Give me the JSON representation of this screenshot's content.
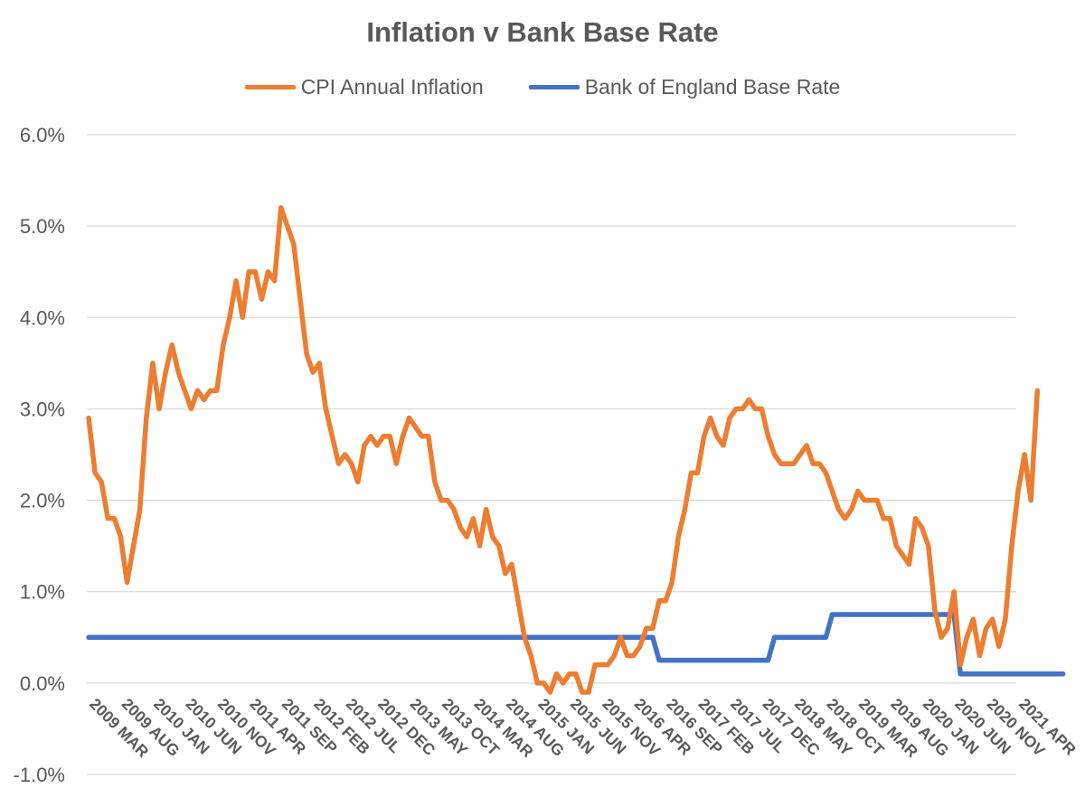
{
  "chart_data": {
    "type": "line",
    "title": "Inflation v Bank Base Rate",
    "xlabel": "",
    "ylabel": "",
    "ylim": [
      -1.0,
      6.0
    ],
    "y_ticks": [
      "-1.0%",
      "0.0%",
      "1.0%",
      "2.0%",
      "3.0%",
      "4.0%",
      "5.0%",
      "6.0%"
    ],
    "y_tick_values": [
      -1,
      0,
      1,
      2,
      3,
      4,
      5,
      6
    ],
    "grid": true,
    "legend_position": "top-center",
    "x_start": "2009 MAR",
    "x_tick_labels": [
      "2009 MAR",
      "2009 AUG",
      "2010 JAN",
      "2010 JUN",
      "2010 NOV",
      "2011 APR",
      "2011 SEP",
      "2012 FEB",
      "2012 JUL",
      "2012 DEC",
      "2013 MAY",
      "2013 OCT",
      "2014 MAR",
      "2014 AUG",
      "2015 JAN",
      "2015 JUN",
      "2015 NOV",
      "2016 APR",
      "2016 SEP",
      "2017 FEB",
      "2017 JUL",
      "2017 DEC",
      "2018 MAY",
      "2018 OCT",
      "2019 MAR",
      "2019 AUG",
      "2020 JAN",
      "2020 JUN",
      "2020 NOV",
      "2021 APR"
    ],
    "series": [
      {
        "name": "CPI Annual Inflation",
        "color": "#ED7D31",
        "values": [
          2.9,
          2.3,
          2.2,
          1.8,
          1.8,
          1.6,
          1.1,
          1.5,
          1.9,
          2.9,
          3.5,
          3.0,
          3.4,
          3.7,
          3.4,
          3.2,
          3.0,
          3.2,
          3.1,
          3.2,
          3.2,
          3.7,
          4.0,
          4.4,
          4.0,
          4.5,
          4.5,
          4.2,
          4.5,
          4.4,
          5.2,
          5.0,
          4.8,
          4.2,
          3.6,
          3.4,
          3.5,
          3.0,
          2.7,
          2.4,
          2.5,
          2.4,
          2.2,
          2.6,
          2.7,
          2.6,
          2.7,
          2.7,
          2.4,
          2.7,
          2.9,
          2.8,
          2.7,
          2.7,
          2.2,
          2.0,
          2.0,
          1.9,
          1.7,
          1.6,
          1.8,
          1.5,
          1.9,
          1.6,
          1.5,
          1.2,
          1.3,
          0.9,
          0.5,
          0.3,
          0.0,
          0.0,
          -0.1,
          0.1,
          0.0,
          0.1,
          0.1,
          -0.1,
          -0.1,
          0.2,
          0.2,
          0.2,
          0.3,
          0.5,
          0.3,
          0.3,
          0.4,
          0.6,
          0.6,
          0.9,
          0.9,
          1.1,
          1.6,
          1.9,
          2.3,
          2.3,
          2.7,
          2.9,
          2.7,
          2.6,
          2.9,
          3.0,
          3.0,
          3.1,
          3.0,
          3.0,
          2.7,
          2.5,
          2.4,
          2.4,
          2.4,
          2.5,
          2.6,
          2.4,
          2.4,
          2.3,
          2.1,
          1.9,
          1.8,
          1.9,
          2.1,
          2.0,
          2.0,
          2.0,
          1.8,
          1.8,
          1.5,
          1.4,
          1.3,
          1.8,
          1.7,
          1.5,
          0.8,
          0.5,
          0.6,
          1.0,
          0.2,
          0.5,
          0.7,
          0.3,
          0.6,
          0.7,
          0.4,
          0.7,
          1.5,
          2.1,
          2.5,
          2.0,
          3.2
        ]
      },
      {
        "name": "Bank of England Base Rate",
        "color": "#4472C4",
        "values": [
          0.5,
          0.5,
          0.5,
          0.5,
          0.5,
          0.5,
          0.5,
          0.5,
          0.5,
          0.5,
          0.5,
          0.5,
          0.5,
          0.5,
          0.5,
          0.5,
          0.5,
          0.5,
          0.5,
          0.5,
          0.5,
          0.5,
          0.5,
          0.5,
          0.5,
          0.5,
          0.5,
          0.5,
          0.5,
          0.5,
          0.5,
          0.5,
          0.5,
          0.5,
          0.5,
          0.5,
          0.5,
          0.5,
          0.5,
          0.5,
          0.5,
          0.5,
          0.5,
          0.5,
          0.5,
          0.5,
          0.5,
          0.5,
          0.5,
          0.5,
          0.5,
          0.5,
          0.5,
          0.5,
          0.5,
          0.5,
          0.5,
          0.5,
          0.5,
          0.5,
          0.5,
          0.5,
          0.5,
          0.5,
          0.5,
          0.5,
          0.5,
          0.5,
          0.5,
          0.5,
          0.5,
          0.5,
          0.5,
          0.5,
          0.5,
          0.5,
          0.5,
          0.5,
          0.5,
          0.5,
          0.5,
          0.5,
          0.5,
          0.5,
          0.5,
          0.5,
          0.5,
          0.5,
          0.5,
          0.25,
          0.25,
          0.25,
          0.25,
          0.25,
          0.25,
          0.25,
          0.25,
          0.25,
          0.25,
          0.25,
          0.25,
          0.25,
          0.25,
          0.25,
          0.25,
          0.25,
          0.25,
          0.5,
          0.5,
          0.5,
          0.5,
          0.5,
          0.5,
          0.5,
          0.5,
          0.5,
          0.75,
          0.75,
          0.75,
          0.75,
          0.75,
          0.75,
          0.75,
          0.75,
          0.75,
          0.75,
          0.75,
          0.75,
          0.75,
          0.75,
          0.75,
          0.75,
          0.75,
          0.75,
          0.75,
          0.75,
          0.1,
          0.1,
          0.1,
          0.1,
          0.1,
          0.1,
          0.1,
          0.1,
          0.1,
          0.1,
          0.1,
          0.1,
          0.1,
          0.1,
          0.1,
          0.1,
          0.1
        ]
      }
    ]
  }
}
